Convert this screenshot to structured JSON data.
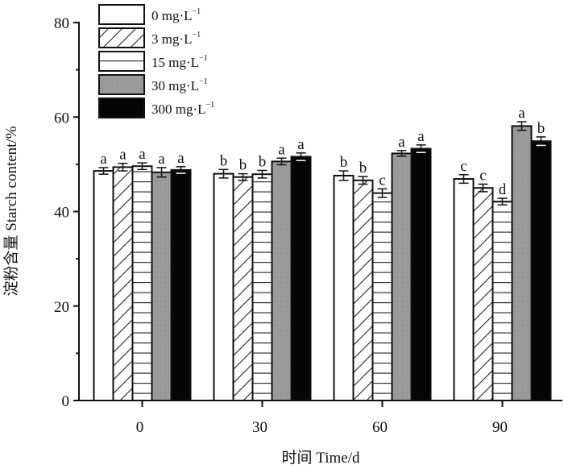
{
  "chart_data": {
    "type": "bar",
    "title": "",
    "xlabel": "时间 Time/d",
    "ylabel": "淀粉含量 Starch content/%",
    "ylim": [
      0,
      80
    ],
    "yticks": [
      0,
      20,
      40,
      60,
      80
    ],
    "yminor_step": 10,
    "categories": [
      "0",
      "30",
      "60",
      "90"
    ],
    "category_values": [
      0,
      30,
      60,
      90
    ],
    "grid": false,
    "legend_position": "top-left",
    "series": [
      {
        "name": "0 mg·L",
        "unit_sup": "−1",
        "pattern": "white",
        "values": [
          48.6,
          48.0,
          47.6,
          46.9
        ],
        "errors": [
          0.7,
          0.9,
          1.0,
          0.9
        ],
        "labels": [
          "a",
          "b",
          "b",
          "c"
        ]
      },
      {
        "name": "3 mg·L",
        "unit_sup": "−1",
        "pattern": "diagonal",
        "values": [
          49.4,
          47.3,
          46.6,
          45.0
        ],
        "errors": [
          0.8,
          0.7,
          0.8,
          0.8
        ],
        "labels": [
          "a",
          "b",
          "b",
          "c"
        ]
      },
      {
        "name": "15 mg·L",
        "unit_sup": "−1",
        "pattern": "horizontal",
        "values": [
          49.6,
          47.9,
          43.9,
          42.1
        ],
        "errors": [
          0.7,
          0.8,
          0.9,
          0.7
        ],
        "labels": [
          "a",
          "b",
          "c",
          "d"
        ]
      },
      {
        "name": "30 mg·L",
        "unit_sup": "−1",
        "pattern": "gray",
        "values": [
          48.3,
          50.6,
          52.3,
          58.1
        ],
        "errors": [
          1.0,
          0.7,
          0.6,
          0.9
        ],
        "labels": [
          "a",
          "a",
          "a",
          "a"
        ]
      },
      {
        "name": "300 mg·L",
        "unit_sup": "−1",
        "pattern": "black",
        "values": [
          48.8,
          51.6,
          53.3,
          54.9
        ],
        "errors": [
          0.7,
          0.8,
          0.8,
          0.9
        ],
        "labels": [
          "a",
          "a",
          "a",
          "b"
        ]
      }
    ]
  },
  "colors": {
    "axis": "#111111",
    "bar_edge": "#111111",
    "white_fill": "#ffffff",
    "gray_fill": "#999999",
    "black_fill": "#050505",
    "hatch": "#222222"
  }
}
